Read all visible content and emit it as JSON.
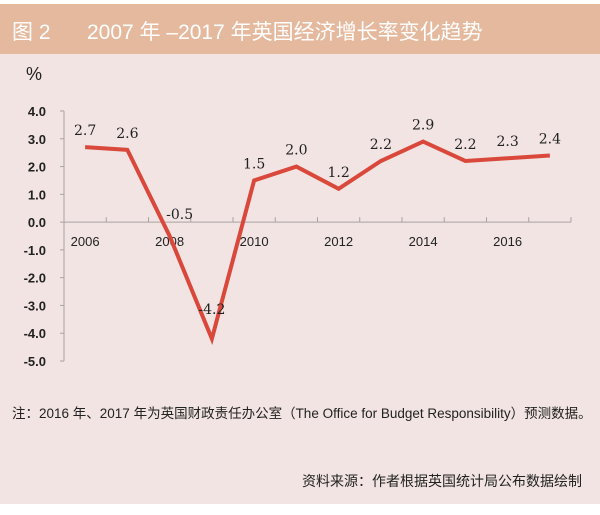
{
  "header": {
    "figure_no": "图 2",
    "title": "2007 年 –2017 年英国经济增长率变化趋势"
  },
  "chart_data": {
    "type": "line",
    "title": "2007 年 –2017 年英国经济增长率变化趋势",
    "ylabel": "%",
    "xlabel": "",
    "categories": [
      "2006",
      "2007",
      "2008",
      "2009",
      "2010",
      "2011",
      "2012",
      "2013",
      "2014",
      "2015",
      "2016",
      "2017"
    ],
    "x_tick_labels": [
      "2006",
      "2008",
      "2010",
      "2012",
      "2014",
      "2016"
    ],
    "y_tick_labels": [
      "4.0",
      "3.0",
      "2.0",
      "1.0",
      "0.0",
      "-1.0",
      "-2.0",
      "-3.0",
      "-4.0",
      "-5.0"
    ],
    "series": [
      {
        "name": "英国经济增长率",
        "values": [
          2.7,
          2.6,
          -0.5,
          -4.2,
          1.5,
          2.0,
          1.2,
          2.2,
          2.9,
          2.2,
          2.3,
          2.4
        ],
        "labels": [
          "2.7",
          "2.6",
          "-0.5",
          "-4.2",
          "1.5",
          "2.0",
          "1.2",
          "2.2",
          "2.9",
          "2.2",
          "2.3",
          "2.4"
        ],
        "color": "#d9483b"
      }
    ],
    "ylim": [
      -5,
      4
    ],
    "grid": false,
    "legend": "none"
  },
  "note": "注：2016 年、2017 年为英国财政责任办公室（The Office for Budget Responsibility）预测数据。",
  "source": "资料来源：作者根据英国统计局公布数据绘制"
}
